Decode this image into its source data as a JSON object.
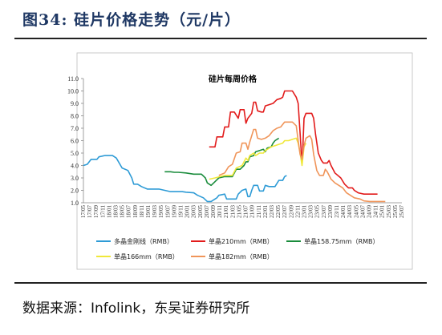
{
  "figure": {
    "title": "图34:  硅片价格走势（元/片）",
    "source": "数据来源：Infolink，东吴证券研究所"
  },
  "chart_data": {
    "type": "line",
    "title": "硅片每周价格",
    "xlabel": "",
    "ylabel": "",
    "ylim": [
      1.0,
      11.0
    ],
    "yticks": [
      "1.0",
      "2.0",
      "3.0",
      "4.0",
      "5.0",
      "6.0",
      "7.0",
      "8.0",
      "9.0",
      "10.0",
      "11.0"
    ],
    "xlim": [
      2017.35,
      2025.58
    ],
    "xticks": [
      "17/05",
      "17/07",
      "17/09",
      "17/11",
      "18/01",
      "18/03",
      "18/05",
      "18/07",
      "18/09",
      "18/11",
      "19/01",
      "19/03",
      "19/05",
      "19/07",
      "19/09",
      "19/11",
      "20/01",
      "20/03",
      "20/05",
      "20/07",
      "20/09",
      "20/11",
      "21/01",
      "21/03",
      "21/05",
      "21/07",
      "21/09",
      "21/11",
      "22/01",
      "22/03",
      "22/05",
      "22/07",
      "22/09",
      "22/11",
      "23/01",
      "23/03",
      "23/05",
      "23/07",
      "23/09",
      "23/11",
      "24/01",
      "24/03",
      "24/05",
      "24/07",
      "24/09",
      "24/11",
      "25/01",
      "25/03",
      "25/05",
      "25/07"
    ],
    "legend_position": "bottom",
    "series": [
      {
        "name": "多晶金刚线（RMB）",
        "color": "#2e9bd6",
        "points": [
          [
            2017.35,
            4.0
          ],
          [
            2017.45,
            4.1
          ],
          [
            2017.55,
            4.5
          ],
          [
            2017.7,
            4.5
          ],
          [
            2017.75,
            4.7
          ],
          [
            2017.9,
            4.8
          ],
          [
            2018.1,
            4.8
          ],
          [
            2018.2,
            4.6
          ],
          [
            2018.35,
            3.8
          ],
          [
            2018.5,
            3.6
          ],
          [
            2018.6,
            3.0
          ],
          [
            2018.65,
            2.5
          ],
          [
            2018.75,
            2.5
          ],
          [
            2018.85,
            2.3
          ],
          [
            2019.0,
            2.1
          ],
          [
            2019.3,
            2.1
          ],
          [
            2019.45,
            2.0
          ],
          [
            2019.6,
            1.9
          ],
          [
            2019.9,
            1.9
          ],
          [
            2020.0,
            1.85
          ],
          [
            2020.2,
            1.8
          ],
          [
            2020.3,
            1.6
          ],
          [
            2020.45,
            1.4
          ],
          [
            2020.55,
            1.1
          ],
          [
            2020.65,
            1.1
          ],
          [
            2020.8,
            1.4
          ],
          [
            2020.85,
            1.6
          ],
          [
            2021.0,
            1.7
          ],
          [
            2021.05,
            1.3
          ],
          [
            2021.15,
            1.3
          ],
          [
            2021.3,
            1.3
          ],
          [
            2021.35,
            1.7
          ],
          [
            2021.45,
            2.0
          ],
          [
            2021.55,
            2.1
          ],
          [
            2021.6,
            1.5
          ],
          [
            2021.65,
            1.5
          ],
          [
            2021.7,
            2.0
          ],
          [
            2021.75,
            2.4
          ],
          [
            2021.85,
            2.4
          ],
          [
            2021.9,
            1.95
          ],
          [
            2022.0,
            1.95
          ],
          [
            2022.05,
            2.4
          ],
          [
            2022.15,
            2.3
          ],
          [
            2022.3,
            2.3
          ],
          [
            2022.4,
            2.8
          ],
          [
            2022.5,
            2.8
          ],
          [
            2022.55,
            3.1
          ],
          [
            2022.6,
            3.2
          ]
        ]
      },
      {
        "name": "单晶210mm（RMB）",
        "color": "#e21b1b",
        "points": [
          [
            2020.6,
            5.5
          ],
          [
            2020.75,
            5.5
          ],
          [
            2020.8,
            6.3
          ],
          [
            2020.95,
            6.3
          ],
          [
            2021.0,
            7.1
          ],
          [
            2021.1,
            7.1
          ],
          [
            2021.15,
            8.3
          ],
          [
            2021.25,
            8.3
          ],
          [
            2021.35,
            7.8
          ],
          [
            2021.4,
            8.5
          ],
          [
            2021.5,
            8.5
          ],
          [
            2021.55,
            7.4
          ],
          [
            2021.6,
            7.8
          ],
          [
            2021.7,
            8.2
          ],
          [
            2021.75,
            9.1
          ],
          [
            2021.8,
            9.1
          ],
          [
            2021.85,
            8.4
          ],
          [
            2021.95,
            8.3
          ],
          [
            2022.0,
            8.3
          ],
          [
            2022.05,
            8.8
          ],
          [
            2022.15,
            8.9
          ],
          [
            2022.25,
            9.0
          ],
          [
            2022.35,
            9.3
          ],
          [
            2022.45,
            9.4
          ],
          [
            2022.5,
            9.5
          ],
          [
            2022.55,
            10.0
          ],
          [
            2022.75,
            10.0
          ],
          [
            2022.85,
            9.5
          ],
          [
            2022.9,
            9.0
          ],
          [
            2022.95,
            6.6
          ],
          [
            2022.98,
            5.0
          ],
          [
            2023.0,
            4.2
          ],
          [
            2023.02,
            5.4
          ],
          [
            2023.05,
            7.8
          ],
          [
            2023.1,
            8.2
          ],
          [
            2023.25,
            8.2
          ],
          [
            2023.3,
            7.8
          ],
          [
            2023.35,
            6.5
          ],
          [
            2023.42,
            5.0
          ],
          [
            2023.5,
            4.4
          ],
          [
            2023.55,
            4.2
          ],
          [
            2023.65,
            4.2
          ],
          [
            2023.7,
            4.4
          ],
          [
            2023.75,
            4.0
          ],
          [
            2023.85,
            3.4
          ],
          [
            2024.0,
            3.0
          ],
          [
            2024.1,
            2.5
          ],
          [
            2024.2,
            2.2
          ],
          [
            2024.3,
            2.2
          ],
          [
            2024.35,
            2.0
          ],
          [
            2024.45,
            1.8
          ],
          [
            2024.6,
            1.7
          ],
          [
            2024.95,
            1.7
          ]
        ]
      },
      {
        "name": "单晶158.75mm（RMB）",
        "color": "#1a8c3c",
        "points": [
          [
            2019.45,
            3.5
          ],
          [
            2019.6,
            3.5
          ],
          [
            2019.7,
            3.45
          ],
          [
            2019.8,
            3.45
          ],
          [
            2020.0,
            3.4
          ],
          [
            2020.2,
            3.3
          ],
          [
            2020.4,
            3.3
          ],
          [
            2020.5,
            3.0
          ],
          [
            2020.55,
            2.6
          ],
          [
            2020.65,
            2.4
          ],
          [
            2020.75,
            2.7
          ],
          [
            2020.85,
            3.0
          ],
          [
            2021.0,
            3.1
          ],
          [
            2021.2,
            3.1
          ],
          [
            2021.3,
            3.7
          ],
          [
            2021.4,
            3.7
          ],
          [
            2021.5,
            4.0
          ],
          [
            2021.55,
            4.3
          ],
          [
            2021.6,
            4.3
          ],
          [
            2021.65,
            4.7
          ],
          [
            2021.75,
            4.8
          ],
          [
            2021.8,
            5.1
          ],
          [
            2021.9,
            5.2
          ],
          [
            2022.0,
            5.3
          ],
          [
            2022.05,
            5.1
          ],
          [
            2022.1,
            5.4
          ],
          [
            2022.2,
            5.5
          ],
          [
            2022.25,
            5.8
          ],
          [
            2022.3,
            6.0
          ],
          [
            2022.4,
            6.2
          ]
        ]
      },
      {
        "name": "单晶166mm（RMB）",
        "color": "#f0e83a",
        "points": [
          [
            2020.6,
            2.9
          ],
          [
            2020.75,
            3.0
          ],
          [
            2021.0,
            3.2
          ],
          [
            2021.2,
            3.2
          ],
          [
            2021.3,
            3.8
          ],
          [
            2021.45,
            4.0
          ],
          [
            2021.55,
            4.6
          ],
          [
            2021.6,
            4.4
          ],
          [
            2021.65,
            4.8
          ],
          [
            2021.75,
            5.0
          ],
          [
            2021.8,
            4.8
          ],
          [
            2021.85,
            4.9
          ],
          [
            2021.9,
            5.0
          ],
          [
            2022.0,
            5.0
          ],
          [
            2022.05,
            5.2
          ],
          [
            2022.2,
            5.5
          ],
          [
            2022.3,
            5.6
          ],
          [
            2022.4,
            5.7
          ],
          [
            2022.5,
            5.8
          ],
          [
            2022.55,
            6.0
          ],
          [
            2022.65,
            6.0
          ],
          [
            2022.75,
            6.1
          ],
          [
            2022.85,
            6.2
          ],
          [
            2022.9,
            5.8
          ],
          [
            2022.95,
            5.0
          ],
          [
            2023.0,
            4.0
          ],
          [
            2023.05,
            5.5
          ],
          [
            2023.1,
            5.8
          ]
        ]
      },
      {
        "name": "单晶182mm（RMB）",
        "color": "#f0955a",
        "points": [
          [
            2020.85,
            3.2
          ],
          [
            2021.0,
            3.4
          ],
          [
            2021.1,
            3.9
          ],
          [
            2021.2,
            4.1
          ],
          [
            2021.3,
            5.0
          ],
          [
            2021.4,
            5.1
          ],
          [
            2021.45,
            5.8
          ],
          [
            2021.55,
            5.8
          ],
          [
            2021.6,
            5.3
          ],
          [
            2021.65,
            5.9
          ],
          [
            2021.7,
            6.4
          ],
          [
            2021.75,
            6.9
          ],
          [
            2021.8,
            6.9
          ],
          [
            2021.85,
            6.2
          ],
          [
            2021.95,
            6.1
          ],
          [
            2022.05,
            6.2
          ],
          [
            2022.15,
            6.4
          ],
          [
            2022.25,
            6.8
          ],
          [
            2022.35,
            7.0
          ],
          [
            2022.45,
            7.1
          ],
          [
            2022.55,
            7.5
          ],
          [
            2022.75,
            7.5
          ],
          [
            2022.85,
            7.2
          ],
          [
            2022.9,
            6.0
          ],
          [
            2022.95,
            4.9
          ],
          [
            2023.0,
            4.5
          ],
          [
            2023.05,
            5.6
          ],
          [
            2023.1,
            6.2
          ],
          [
            2023.2,
            6.4
          ],
          [
            2023.25,
            6.1
          ],
          [
            2023.3,
            4.9
          ],
          [
            2023.38,
            3.6
          ],
          [
            2023.45,
            3.2
          ],
          [
            2023.55,
            3.2
          ],
          [
            2023.6,
            3.7
          ],
          [
            2023.65,
            3.5
          ],
          [
            2023.75,
            2.9
          ],
          [
            2023.85,
            2.6
          ],
          [
            2023.95,
            2.4
          ],
          [
            2024.05,
            2.2
          ],
          [
            2024.15,
            1.8
          ],
          [
            2024.25,
            1.6
          ],
          [
            2024.35,
            1.4
          ],
          [
            2024.5,
            1.3
          ],
          [
            2024.6,
            1.15
          ],
          [
            2024.75,
            1.1
          ],
          [
            2025.0,
            1.1
          ],
          [
            2025.15,
            1.1
          ]
        ]
      }
    ]
  }
}
